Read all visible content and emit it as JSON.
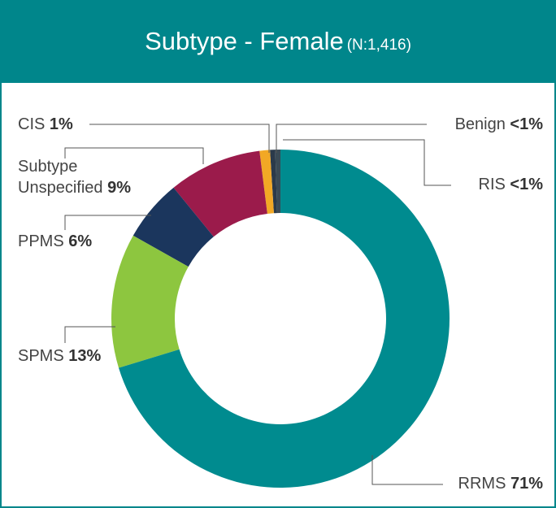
{
  "chart_data": {
    "type": "donut",
    "title": "Subtype - Female",
    "subtitle": "(N:1,416)",
    "categories": [
      "RRMS",
      "SPMS",
      "PPMS",
      "Subtype Unspecified",
      "CIS",
      "Benign",
      "RIS"
    ],
    "values": [
      71,
      13,
      6,
      9,
      1,
      0.5,
      0.5
    ],
    "value_labels": [
      "71%",
      "13%",
      "6%",
      "9%",
      "1%",
      "<1%",
      "<1%"
    ],
    "colors": [
      "#008b8f",
      "#8dc63f",
      "#1b365d",
      "#9b1b4b",
      "#f2a825",
      "#2b3a4a",
      "#3a4a55"
    ]
  }
}
